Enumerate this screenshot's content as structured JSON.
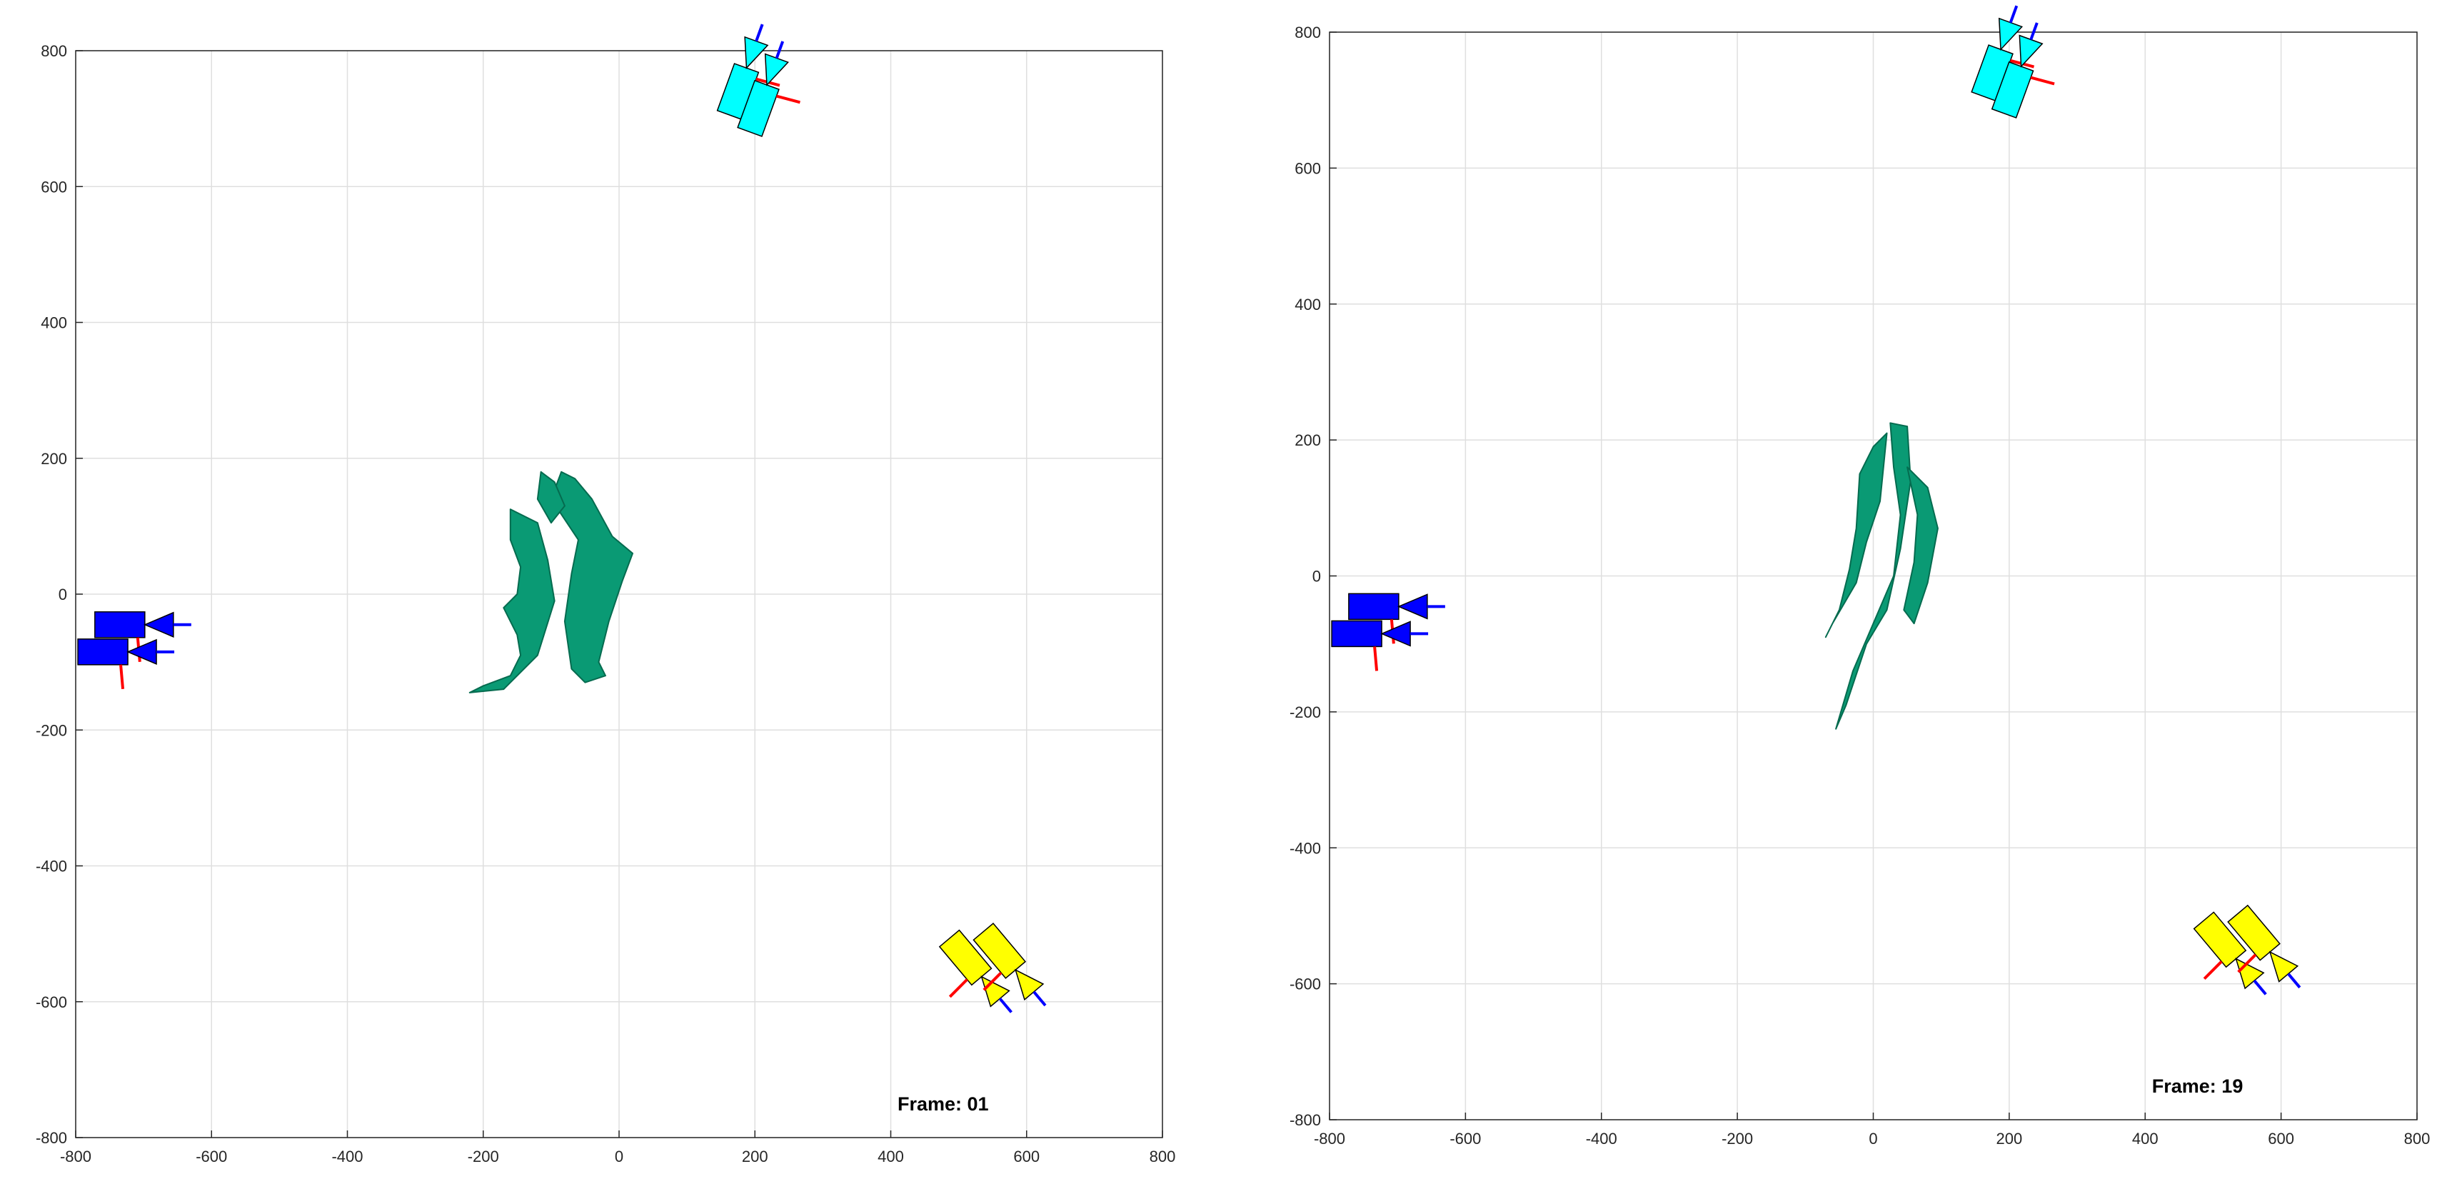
{
  "colors": {
    "blue_camera": "#0000ff",
    "cyan_camera": "#00ffff",
    "yellow_camera": "#ffff00",
    "body": "#0a9a74",
    "body_dark": "#056b4f",
    "axis_red": "#ff0000",
    "axis_blue": "#0000ff",
    "grid": "#dfdfdf"
  },
  "chart_data": [
    {
      "type": "scatter",
      "title": "",
      "xlabel": "",
      "ylabel": "",
      "xlim": [
        -800,
        800
      ],
      "ylim": [
        -800,
        800
      ],
      "xticks": [
        -800,
        -600,
        -400,
        -200,
        0,
        200,
        400,
        600,
        800
      ],
      "yticks": [
        -800,
        -600,
        -400,
        -200,
        0,
        200,
        400,
        600,
        800
      ],
      "grid": true,
      "annotation": "Frame: 01",
      "cameras": [
        {
          "name": "blue-camera-1",
          "color": "blue",
          "x": -735,
          "y": -45,
          "angle": 0
        },
        {
          "name": "blue-camera-2",
          "color": "blue",
          "x": -760,
          "y": -85,
          "angle": 0
        },
        {
          "name": "cyan-camera-1",
          "color": "cyan",
          "x": 175,
          "y": 740,
          "angle": 70
        },
        {
          "name": "cyan-camera-2",
          "color": "cyan",
          "x": 205,
          "y": 715,
          "angle": 70
        },
        {
          "name": "yellow-camera-1",
          "color": "yellow",
          "x": 510,
          "y": -535,
          "angle": -50
        },
        {
          "name": "yellow-camera-2",
          "color": "yellow",
          "x": 560,
          "y": -525,
          "angle": -50
        }
      ],
      "body_center": [
        -50,
        20
      ]
    },
    {
      "type": "scatter",
      "title": "",
      "xlabel": "",
      "ylabel": "",
      "xlim": [
        -800,
        800
      ],
      "ylim": [
        -800,
        800
      ],
      "xticks": [
        -800,
        -600,
        -400,
        -200,
        0,
        200,
        400,
        600,
        800
      ],
      "yticks": [
        -800,
        -600,
        -400,
        -200,
        0,
        200,
        400,
        600,
        800
      ],
      "grid": true,
      "annotation": "Frame: 19",
      "cameras": [
        {
          "name": "blue-camera-1",
          "color": "blue",
          "x": -735,
          "y": -45,
          "angle": 0
        },
        {
          "name": "blue-camera-2",
          "color": "blue",
          "x": -760,
          "y": -85,
          "angle": 0
        },
        {
          "name": "cyan-camera-1",
          "color": "cyan",
          "x": 175,
          "y": 740,
          "angle": 70
        },
        {
          "name": "cyan-camera-2",
          "color": "cyan",
          "x": 205,
          "y": 715,
          "angle": 70
        },
        {
          "name": "yellow-camera-1",
          "color": "yellow",
          "x": 510,
          "y": -535,
          "angle": -50
        },
        {
          "name": "yellow-camera-2",
          "color": "yellow",
          "x": 560,
          "y": -525,
          "angle": -50
        }
      ],
      "body_center": [
        20,
        10
      ]
    }
  ]
}
